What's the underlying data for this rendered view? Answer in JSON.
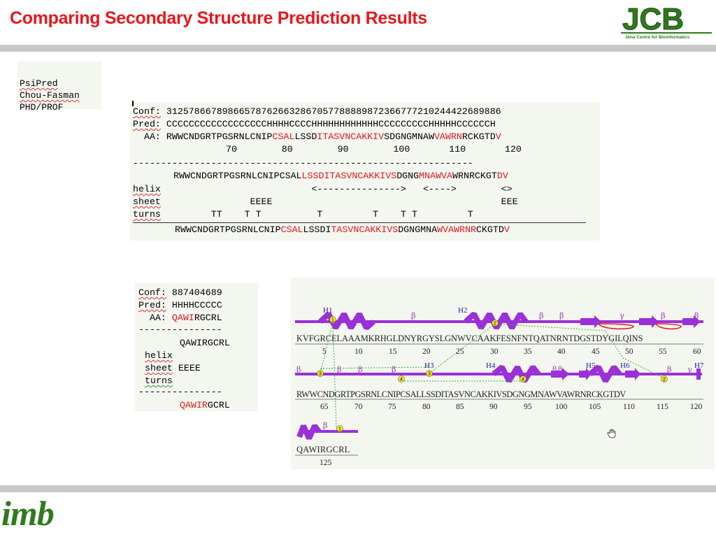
{
  "title": "Comparing Secondary Structure Prediction Results",
  "logo": {
    "letters": "JCB",
    "subtitle": "Jena Centre for Bioinformatics"
  },
  "legend": [
    "PsiPred",
    "Chou-Fasman",
    "PHD/PROF"
  ],
  "panel1": {
    "conf_label": "Conf:",
    "conf": "312578667898665787626632867057788889872366777210244422689886",
    "pred_label": "Pred:",
    "pred": "CCCCCCCCCCCCCCCCCCHHHHCCCCHHHHHHHHHHHHCCCCCCCCCHHHHHCCCCCCH",
    "aa_label": "AA:",
    "aa": [
      "RWWCNDGRTPGSRNLCNIP",
      "CSAL",
      "LSSD",
      "ITASVNCAKKIV",
      "SDGNGMNAW",
      "VAWRN",
      "RCKGTD",
      "V"
    ],
    "numbers": "70        80        90        100       110       120",
    "divider": "-------------------------------------------------------------",
    "seq2": [
      "RWWCNDGRTPGSRNLCNIPCSAL",
      "LSSDITASVNCAKKIVS",
      "DGNG",
      "MNAWVA",
      "WRNRCKGT",
      "DV"
    ],
    "helix_label": "helix",
    "helix": "                      <--------------->   <---->        <>",
    "sheet_label": "sheet",
    "sheet": "           EEEE                                         EEE",
    "turns_label": "turns",
    "turns": "    TT    T T          T         T    T T         T",
    "seq3": [
      "RWWCNDGRTPGSRNLCNIP",
      "CSAL",
      "LSSDI",
      "TASVNCAKKIVS",
      "DGNGMNA",
      "WVAWRNR",
      "CKGTD",
      "V"
    ]
  },
  "panel2": {
    "conf_label": "Conf:",
    "conf": "887404689",
    "pred_label": "Pred:",
    "pred": "HHHHCCCCC",
    "aa_label": "AA:",
    "aa": [
      "QAWI",
      "RGCRL"
    ],
    "divider": "---------------",
    "seq2": "QAWIRGCRL",
    "helix_label": "helix",
    "sheet_label": "sheet",
    "sheet": "EEEE",
    "turns_label": "turns",
    "seq3": [
      "QAWIR",
      "GCRL"
    ]
  },
  "pdbsum": {
    "row1_seq": "KVFGRCELAAAMKRHGLDNYRGYSLGNWVCAAKFESNFNTQATNRNTDGSTDYGILQINS",
    "row1_ticks": [
      "5",
      "10",
      "15",
      "20",
      "25",
      "30",
      "35",
      "40",
      "45",
      "50",
      "55",
      "60"
    ],
    "row2_seq": "RWWCNDGRTPGSRNLCNIPCSALLSSDITASVNCAKKIVSDGNGMNAWVAWRNRCKGTDV",
    "row2_ticks": [
      "65",
      "70",
      "75",
      "80",
      "85",
      "90",
      "95",
      "100",
      "105",
      "110",
      "115",
      "120"
    ],
    "row3_seq": "QAWIRGCRL",
    "row3_ticks": [
      "125"
    ],
    "helix_labels": [
      "H1",
      "H2",
      "H3",
      "H4",
      "H5",
      "H6",
      "H7"
    ],
    "beta": "β",
    "gamma": "γ",
    "circles": [
      "1",
      "2",
      "3",
      "4",
      "3",
      "4",
      "2",
      "1"
    ]
  },
  "footer": {
    "logo": "imb"
  },
  "colors": {
    "title": "#e8161b",
    "accent_red": "#e8161b",
    "logo_green": "#2e7a1d",
    "helix_purple": "#9b30d8",
    "bar_grey": "#c8c8c8"
  }
}
